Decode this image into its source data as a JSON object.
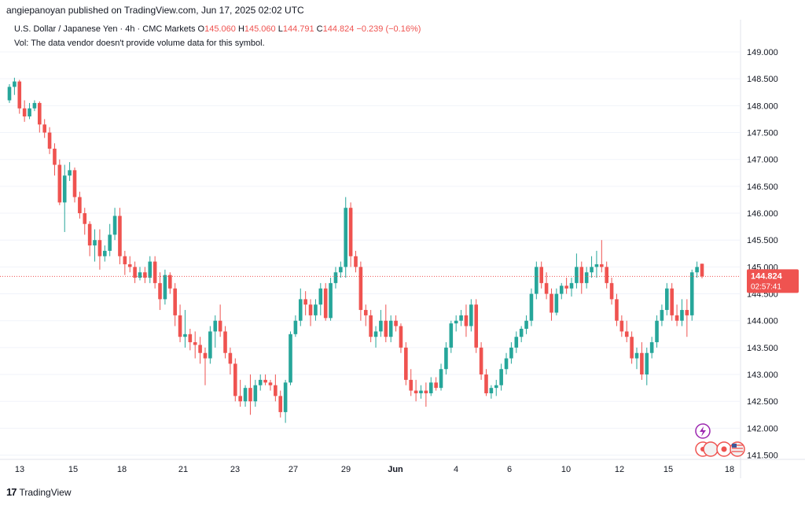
{
  "header": {
    "publisher": "angiepanoyan published on TradingView.com, Jun 17, 2025 02:02 UTC",
    "instrument": "U.S. Dollar / Japanese Yen · 4h · CMC Markets",
    "o_label": "O",
    "o_value": "145.060",
    "h_label": "H",
    "h_value": "145.060",
    "l_label": "L",
    "l_value": "144.791",
    "c_label": "C",
    "c_value": "144.824",
    "change": "−0.239 (−0.16%)",
    "volume_note": "Vol: The data vendor doesn't provide volume data for this symbol."
  },
  "footer": {
    "brand": "TradingView"
  },
  "price_badge": {
    "price": "144.824",
    "countdown": "02:57:41"
  },
  "colors": {
    "up": "#26a69a",
    "down": "#ef5350",
    "grid": "#f0f3fa",
    "text": "#131722",
    "axis_text": "#131722"
  },
  "icons": [
    "lightning-icon",
    "dividend-icon",
    "flag-jp-icon",
    "flag-us-icon"
  ],
  "chart_data": {
    "type": "candlestick",
    "title": "U.S. Dollar / Japanese Yen",
    "ylim": [
      141.45,
      149.6
    ],
    "y_ticks": [
      "149.000",
      "148.500",
      "148.000",
      "147.500",
      "147.000",
      "146.500",
      "146.000",
      "145.500",
      "145.000",
      "144.500",
      "144.000",
      "143.500",
      "143.000",
      "142.500",
      "142.000",
      "141.500"
    ],
    "x_ticks": [
      "13",
      "15",
      "18",
      "21",
      "23",
      "27",
      "29",
      "Jun",
      "4",
      "6",
      "10",
      "12",
      "15",
      "18"
    ],
    "last_price": 144.824,
    "candles": [
      [
        148.1,
        148.4,
        148.05,
        148.35
      ],
      [
        148.35,
        148.52,
        148.2,
        148.45
      ],
      [
        148.45,
        148.48,
        147.85,
        147.95
      ],
      [
        147.95,
        148.1,
        147.7,
        147.8
      ],
      [
        147.8,
        148.05,
        147.75,
        147.95
      ],
      [
        147.95,
        148.1,
        147.9,
        148.05
      ],
      [
        148.05,
        148.08,
        147.5,
        147.65
      ],
      [
        147.65,
        147.75,
        147.4,
        147.5
      ],
      [
        147.5,
        147.6,
        147.1,
        147.2
      ],
      [
        147.2,
        147.3,
        146.7,
        146.9
      ],
      [
        146.9,
        147.0,
        146.15,
        146.2
      ],
      [
        146.2,
        146.9,
        145.65,
        146.7
      ],
      [
        146.7,
        146.95,
        146.6,
        146.8
      ],
      [
        146.8,
        146.85,
        146.2,
        146.3
      ],
      [
        146.3,
        146.4,
        145.9,
        146.0
      ],
      [
        146.0,
        146.1,
        145.6,
        145.8
      ],
      [
        145.8,
        145.85,
        145.2,
        145.4
      ],
      [
        145.4,
        145.7,
        145.1,
        145.5
      ],
      [
        145.5,
        145.7,
        144.95,
        145.2
      ],
      [
        145.2,
        145.4,
        145.1,
        145.3
      ],
      [
        145.3,
        145.8,
        145.2,
        145.6
      ],
      [
        145.6,
        146.1,
        145.5,
        145.95
      ],
      [
        145.95,
        146.1,
        145.05,
        145.2
      ],
      [
        145.2,
        145.3,
        144.85,
        145.05
      ],
      [
        145.05,
        145.2,
        144.9,
        145.0
      ],
      [
        145.0,
        145.1,
        144.7,
        144.8
      ],
      [
        144.8,
        145.0,
        144.75,
        144.9
      ],
      [
        144.9,
        145.0,
        144.7,
        144.8
      ],
      [
        144.8,
        145.2,
        144.7,
        145.1
      ],
      [
        145.1,
        145.2,
        144.6,
        144.7
      ],
      [
        144.7,
        144.9,
        144.2,
        144.4
      ],
      [
        144.4,
        144.95,
        144.3,
        144.85
      ],
      [
        144.85,
        144.9,
        144.5,
        144.6
      ],
      [
        144.6,
        144.7,
        143.9,
        144.1
      ],
      [
        144.1,
        144.3,
        143.6,
        143.7
      ],
      [
        143.7,
        144.2,
        143.5,
        143.75
      ],
      [
        143.75,
        143.85,
        143.45,
        143.6
      ],
      [
        143.6,
        143.8,
        143.3,
        143.55
      ],
      [
        143.55,
        143.7,
        143.2,
        143.4
      ],
      [
        143.4,
        143.5,
        142.8,
        143.3
      ],
      [
        143.3,
        143.9,
        143.2,
        143.8
      ],
      [
        143.8,
        144.1,
        143.5,
        144.0
      ],
      [
        144.0,
        144.3,
        143.7,
        143.8
      ],
      [
        143.8,
        143.9,
        143.3,
        143.4
      ],
      [
        143.4,
        143.5,
        143.0,
        143.2
      ],
      [
        143.2,
        143.3,
        142.5,
        142.6
      ],
      [
        142.6,
        142.9,
        142.4,
        142.5
      ],
      [
        142.5,
        142.8,
        142.4,
        142.75
      ],
      [
        142.75,
        143.0,
        142.25,
        142.5
      ],
      [
        142.5,
        142.9,
        142.4,
        142.8
      ],
      [
        142.8,
        143.0,
        142.7,
        142.9
      ],
      [
        142.9,
        143.0,
        142.8,
        142.85
      ],
      [
        142.85,
        142.9,
        142.7,
        142.8
      ],
      [
        142.8,
        143.0,
        142.5,
        142.6
      ],
      [
        142.6,
        142.7,
        142.2,
        142.3
      ],
      [
        142.3,
        142.9,
        142.1,
        142.85
      ],
      [
        142.85,
        143.8,
        142.8,
        143.75
      ],
      [
        143.75,
        144.1,
        143.7,
        144.0
      ],
      [
        144.0,
        144.6,
        143.9,
        144.4
      ],
      [
        144.4,
        144.55,
        144.1,
        144.3
      ],
      [
        144.3,
        144.4,
        143.9,
        144.1
      ],
      [
        144.1,
        144.4,
        144.0,
        144.3
      ],
      [
        144.3,
        144.7,
        144.1,
        144.6
      ],
      [
        144.6,
        144.7,
        144.0,
        144.05
      ],
      [
        144.05,
        144.8,
        144.0,
        144.7
      ],
      [
        144.7,
        145.0,
        144.6,
        144.9
      ],
      [
        144.9,
        145.1,
        144.8,
        145.0
      ],
      [
        145.0,
        146.3,
        144.8,
        146.1
      ],
      [
        146.1,
        146.2,
        145.0,
        145.2
      ],
      [
        145.2,
        145.3,
        144.9,
        145.0
      ],
      [
        145.0,
        145.1,
        144.0,
        144.2
      ],
      [
        144.2,
        144.3,
        143.9,
        144.1
      ],
      [
        144.1,
        144.2,
        143.6,
        143.7
      ],
      [
        143.7,
        143.9,
        143.5,
        143.8
      ],
      [
        143.8,
        144.2,
        143.7,
        144.0
      ],
      [
        144.0,
        144.3,
        143.6,
        143.7
      ],
      [
        143.7,
        144.1,
        143.6,
        144.0
      ],
      [
        144.0,
        144.1,
        143.8,
        143.9
      ],
      [
        143.9,
        143.95,
        143.4,
        143.5
      ],
      [
        143.5,
        143.6,
        142.8,
        142.9
      ],
      [
        142.9,
        143.1,
        142.6,
        142.7
      ],
      [
        142.7,
        142.9,
        142.5,
        142.65
      ],
      [
        142.65,
        142.8,
        142.55,
        142.7
      ],
      [
        142.7,
        142.85,
        142.4,
        142.65
      ],
      [
        142.65,
        142.95,
        142.6,
        142.85
      ],
      [
        142.85,
        142.95,
        142.7,
        142.75
      ],
      [
        142.75,
        143.2,
        142.7,
        143.1
      ],
      [
        143.1,
        143.6,
        143.0,
        143.5
      ],
      [
        143.5,
        144.0,
        143.4,
        143.95
      ],
      [
        143.95,
        144.1,
        143.8,
        144.0
      ],
      [
        144.0,
        144.2,
        143.9,
        144.1
      ],
      [
        144.1,
        144.3,
        143.7,
        143.9
      ],
      [
        143.9,
        144.4,
        143.8,
        144.3
      ],
      [
        144.3,
        144.4,
        143.4,
        143.5
      ],
      [
        143.5,
        143.6,
        142.9,
        143.0
      ],
      [
        143.0,
        143.1,
        142.6,
        142.65
      ],
      [
        142.65,
        142.8,
        142.55,
        142.75
      ],
      [
        142.75,
        142.9,
        142.6,
        142.8
      ],
      [
        142.8,
        143.2,
        142.7,
        143.1
      ],
      [
        143.1,
        143.4,
        143.0,
        143.3
      ],
      [
        143.3,
        143.6,
        143.2,
        143.5
      ],
      [
        143.5,
        143.8,
        143.4,
        143.7
      ],
      [
        143.7,
        143.9,
        143.6,
        143.85
      ],
      [
        143.85,
        144.1,
        143.75,
        144.0
      ],
      [
        144.0,
        144.6,
        143.9,
        144.5
      ],
      [
        144.5,
        145.1,
        144.4,
        145.0
      ],
      [
        145.0,
        145.1,
        144.6,
        144.7
      ],
      [
        144.7,
        144.9,
        144.4,
        144.5
      ],
      [
        144.5,
        144.6,
        144.0,
        144.15
      ],
      [
        144.15,
        144.6,
        144.1,
        144.5
      ],
      [
        144.5,
        144.7,
        144.4,
        144.65
      ],
      [
        144.65,
        144.8,
        144.5,
        144.6
      ],
      [
        144.6,
        144.8,
        144.45,
        144.7
      ],
      [
        144.7,
        145.25,
        144.6,
        145.0
      ],
      [
        145.0,
        145.1,
        144.5,
        144.7
      ],
      [
        144.7,
        145.0,
        144.6,
        144.9
      ],
      [
        144.9,
        145.2,
        144.8,
        145.0
      ],
      [
        145.0,
        145.3,
        144.8,
        145.05
      ],
      [
        145.05,
        145.5,
        144.9,
        145.0
      ],
      [
        145.0,
        145.1,
        144.6,
        144.7
      ],
      [
        144.7,
        144.8,
        144.3,
        144.4
      ],
      [
        144.4,
        144.5,
        143.9,
        144.0
      ],
      [
        144.0,
        144.1,
        143.7,
        143.8
      ],
      [
        143.8,
        144.0,
        143.6,
        143.7
      ],
      [
        143.7,
        143.8,
        143.2,
        143.3
      ],
      [
        143.3,
        143.5,
        143.1,
        143.4
      ],
      [
        143.4,
        143.6,
        142.9,
        143.0
      ],
      [
        143.0,
        143.5,
        142.8,
        143.4
      ],
      [
        143.4,
        143.7,
        143.3,
        143.6
      ],
      [
        143.6,
        144.1,
        143.5,
        144.0
      ],
      [
        144.0,
        144.3,
        143.9,
        144.2
      ],
      [
        144.2,
        144.7,
        144.1,
        144.6
      ],
      [
        144.6,
        144.7,
        144.0,
        144.1
      ],
      [
        144.1,
        144.3,
        143.9,
        144.0
      ],
      [
        144.0,
        144.4,
        143.9,
        144.2
      ],
      [
        144.2,
        144.4,
        143.7,
        144.1
      ],
      [
        144.1,
        144.95,
        144.0,
        144.9
      ],
      [
        144.9,
        145.1,
        144.8,
        145.0
      ],
      [
        145.06,
        145.06,
        144.79,
        144.824
      ]
    ]
  }
}
